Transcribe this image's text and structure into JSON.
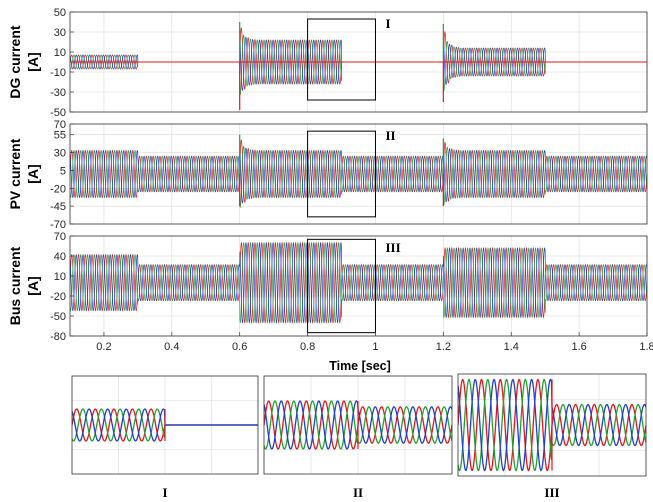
{
  "chart_data": {
    "type": "line",
    "description_of_series": [
      "phase a",
      "phase b",
      "phase c"
    ],
    "series_colors": [
      "#e8141b",
      "#1a3fd4",
      "#23a12f",
      "#e8c21c"
    ],
    "x_axis": {
      "label": "Time [sec]",
      "range": [
        0.1,
        1.8
      ],
      "ticks": [
        0.2,
        0.4,
        0.6,
        0.8,
        1.0,
        1.2,
        1.4,
        1.6,
        1.8
      ],
      "tick_labels": [
        "0.2",
        "0.4",
        "0.6",
        "0.8",
        "1",
        "1.2",
        "1.4",
        "1.6",
        "1.8"
      ]
    },
    "panels": [
      {
        "name": "dg",
        "ylabel_line1": "DG current",
        "ylabel_line2": "[A]",
        "ylim": [
          -50,
          50
        ],
        "yticks": [
          -50,
          -30,
          -10,
          10,
          30,
          50
        ],
        "ytick_labels": [
          "-50",
          "-30",
          "-10",
          "10",
          "30",
          "50"
        ],
        "segments": [
          {
            "t0": 0.1,
            "t1": 0.3,
            "amplitude": 7
          },
          {
            "t0": 0.3,
            "t1": 0.6,
            "amplitude": 0
          },
          {
            "t0": 0.6,
            "t1": 0.9,
            "amplitude": 22
          },
          {
            "t0": 0.9,
            "t1": 1.2,
            "amplitude": 0
          },
          {
            "t0": 1.2,
            "t1": 1.5,
            "amplitude": 14
          },
          {
            "t0": 1.5,
            "t1": 1.8,
            "amplitude": 0
          }
        ],
        "transients": [
          {
            "t": 0.6,
            "peak": 40,
            "neg_peak": -48
          },
          {
            "t": 1.2,
            "peak": 38,
            "neg_peak": -40
          }
        ],
        "inset_box": {
          "label": "I",
          "t0": 0.8,
          "t1": 1.0,
          "y0": -38,
          "y1": 43
        }
      },
      {
        "name": "pv",
        "ylabel_line1": "PV current",
        "ylabel_line2": "[A]",
        "ylim": [
          -70,
          70
        ],
        "yticks": [
          -70,
          -45,
          -20,
          5,
          30,
          55,
          70
        ],
        "ytick_labels": [
          "-70",
          "-45",
          "-20",
          "5",
          "30",
          "55",
          "70"
        ],
        "segments": [
          {
            "t0": 0.1,
            "t1": 0.3,
            "amplitude": 33
          },
          {
            "t0": 0.3,
            "t1": 0.6,
            "amplitude": 25
          },
          {
            "t0": 0.6,
            "t1": 0.9,
            "amplitude": 33
          },
          {
            "t0": 0.9,
            "t1": 1.2,
            "amplitude": 25
          },
          {
            "t0": 1.2,
            "t1": 1.5,
            "amplitude": 33
          },
          {
            "t0": 1.5,
            "t1": 1.8,
            "amplitude": 25
          }
        ],
        "transients": [
          {
            "t": 0.6,
            "peak": 55,
            "neg_peak": -45
          },
          {
            "t": 1.2,
            "peak": 50,
            "neg_peak": -45
          }
        ],
        "inset_box": {
          "label": "II",
          "t0": 0.8,
          "t1": 1.0,
          "y0": -60,
          "y1": 60
        }
      },
      {
        "name": "bus",
        "ylabel_line1": "Bus current",
        "ylabel_line2": "[A]",
        "ylim": [
          -80,
          70
        ],
        "yticks": [
          -80,
          -50,
          -20,
          10,
          40,
          70
        ],
        "ytick_labels": [
          "-80",
          "-50",
          "-20",
          "10",
          "40",
          "70"
        ],
        "segments": [
          {
            "t0": 0.1,
            "t1": 0.3,
            "amplitude": 42
          },
          {
            "t0": 0.3,
            "t1": 0.6,
            "amplitude": 27
          },
          {
            "t0": 0.6,
            "t1": 0.9,
            "amplitude": 60
          },
          {
            "t0": 0.9,
            "t1": 1.2,
            "amplitude": 27
          },
          {
            "t0": 1.2,
            "t1": 1.5,
            "amplitude": 52
          },
          {
            "t0": 1.5,
            "t1": 1.8,
            "amplitude": 27
          }
        ],
        "transients": [],
        "inset_box": {
          "label": "III",
          "t0": 0.8,
          "t1": 1.0,
          "y0": -75,
          "y1": 65
        }
      }
    ],
    "zoom_insets": [
      {
        "label": "I",
        "before_amplitude": 22,
        "after_amplitude": 0
      },
      {
        "label": "II",
        "before_amplitude": 33,
        "after_amplitude": 25
      },
      {
        "label": "III",
        "before_amplitude": 60,
        "after_amplitude": 27
      }
    ]
  }
}
